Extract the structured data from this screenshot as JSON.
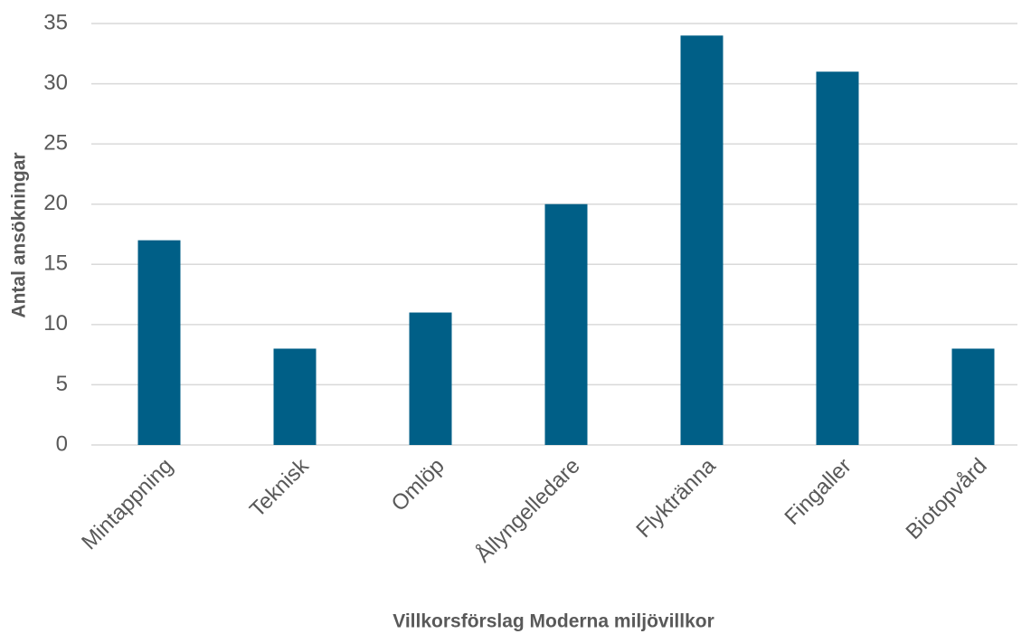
{
  "chart_data": {
    "type": "bar",
    "categories": [
      "Mintappning",
      "Teknisk",
      "Omlöp",
      "Ållyngelledare",
      "Flyktränna",
      "Fingaller",
      "Biotopvård"
    ],
    "values": [
      17,
      8,
      11,
      20,
      34,
      31,
      8
    ],
    "color": "#005f87",
    "xlabel": "Villkorsförslag Moderna miljövillkor",
    "ylabel": "Antal ansökningar",
    "ylim": [
      0,
      35
    ],
    "yticks": [
      0,
      5,
      10,
      15,
      20,
      25,
      30,
      35
    ],
    "grid": true
  }
}
